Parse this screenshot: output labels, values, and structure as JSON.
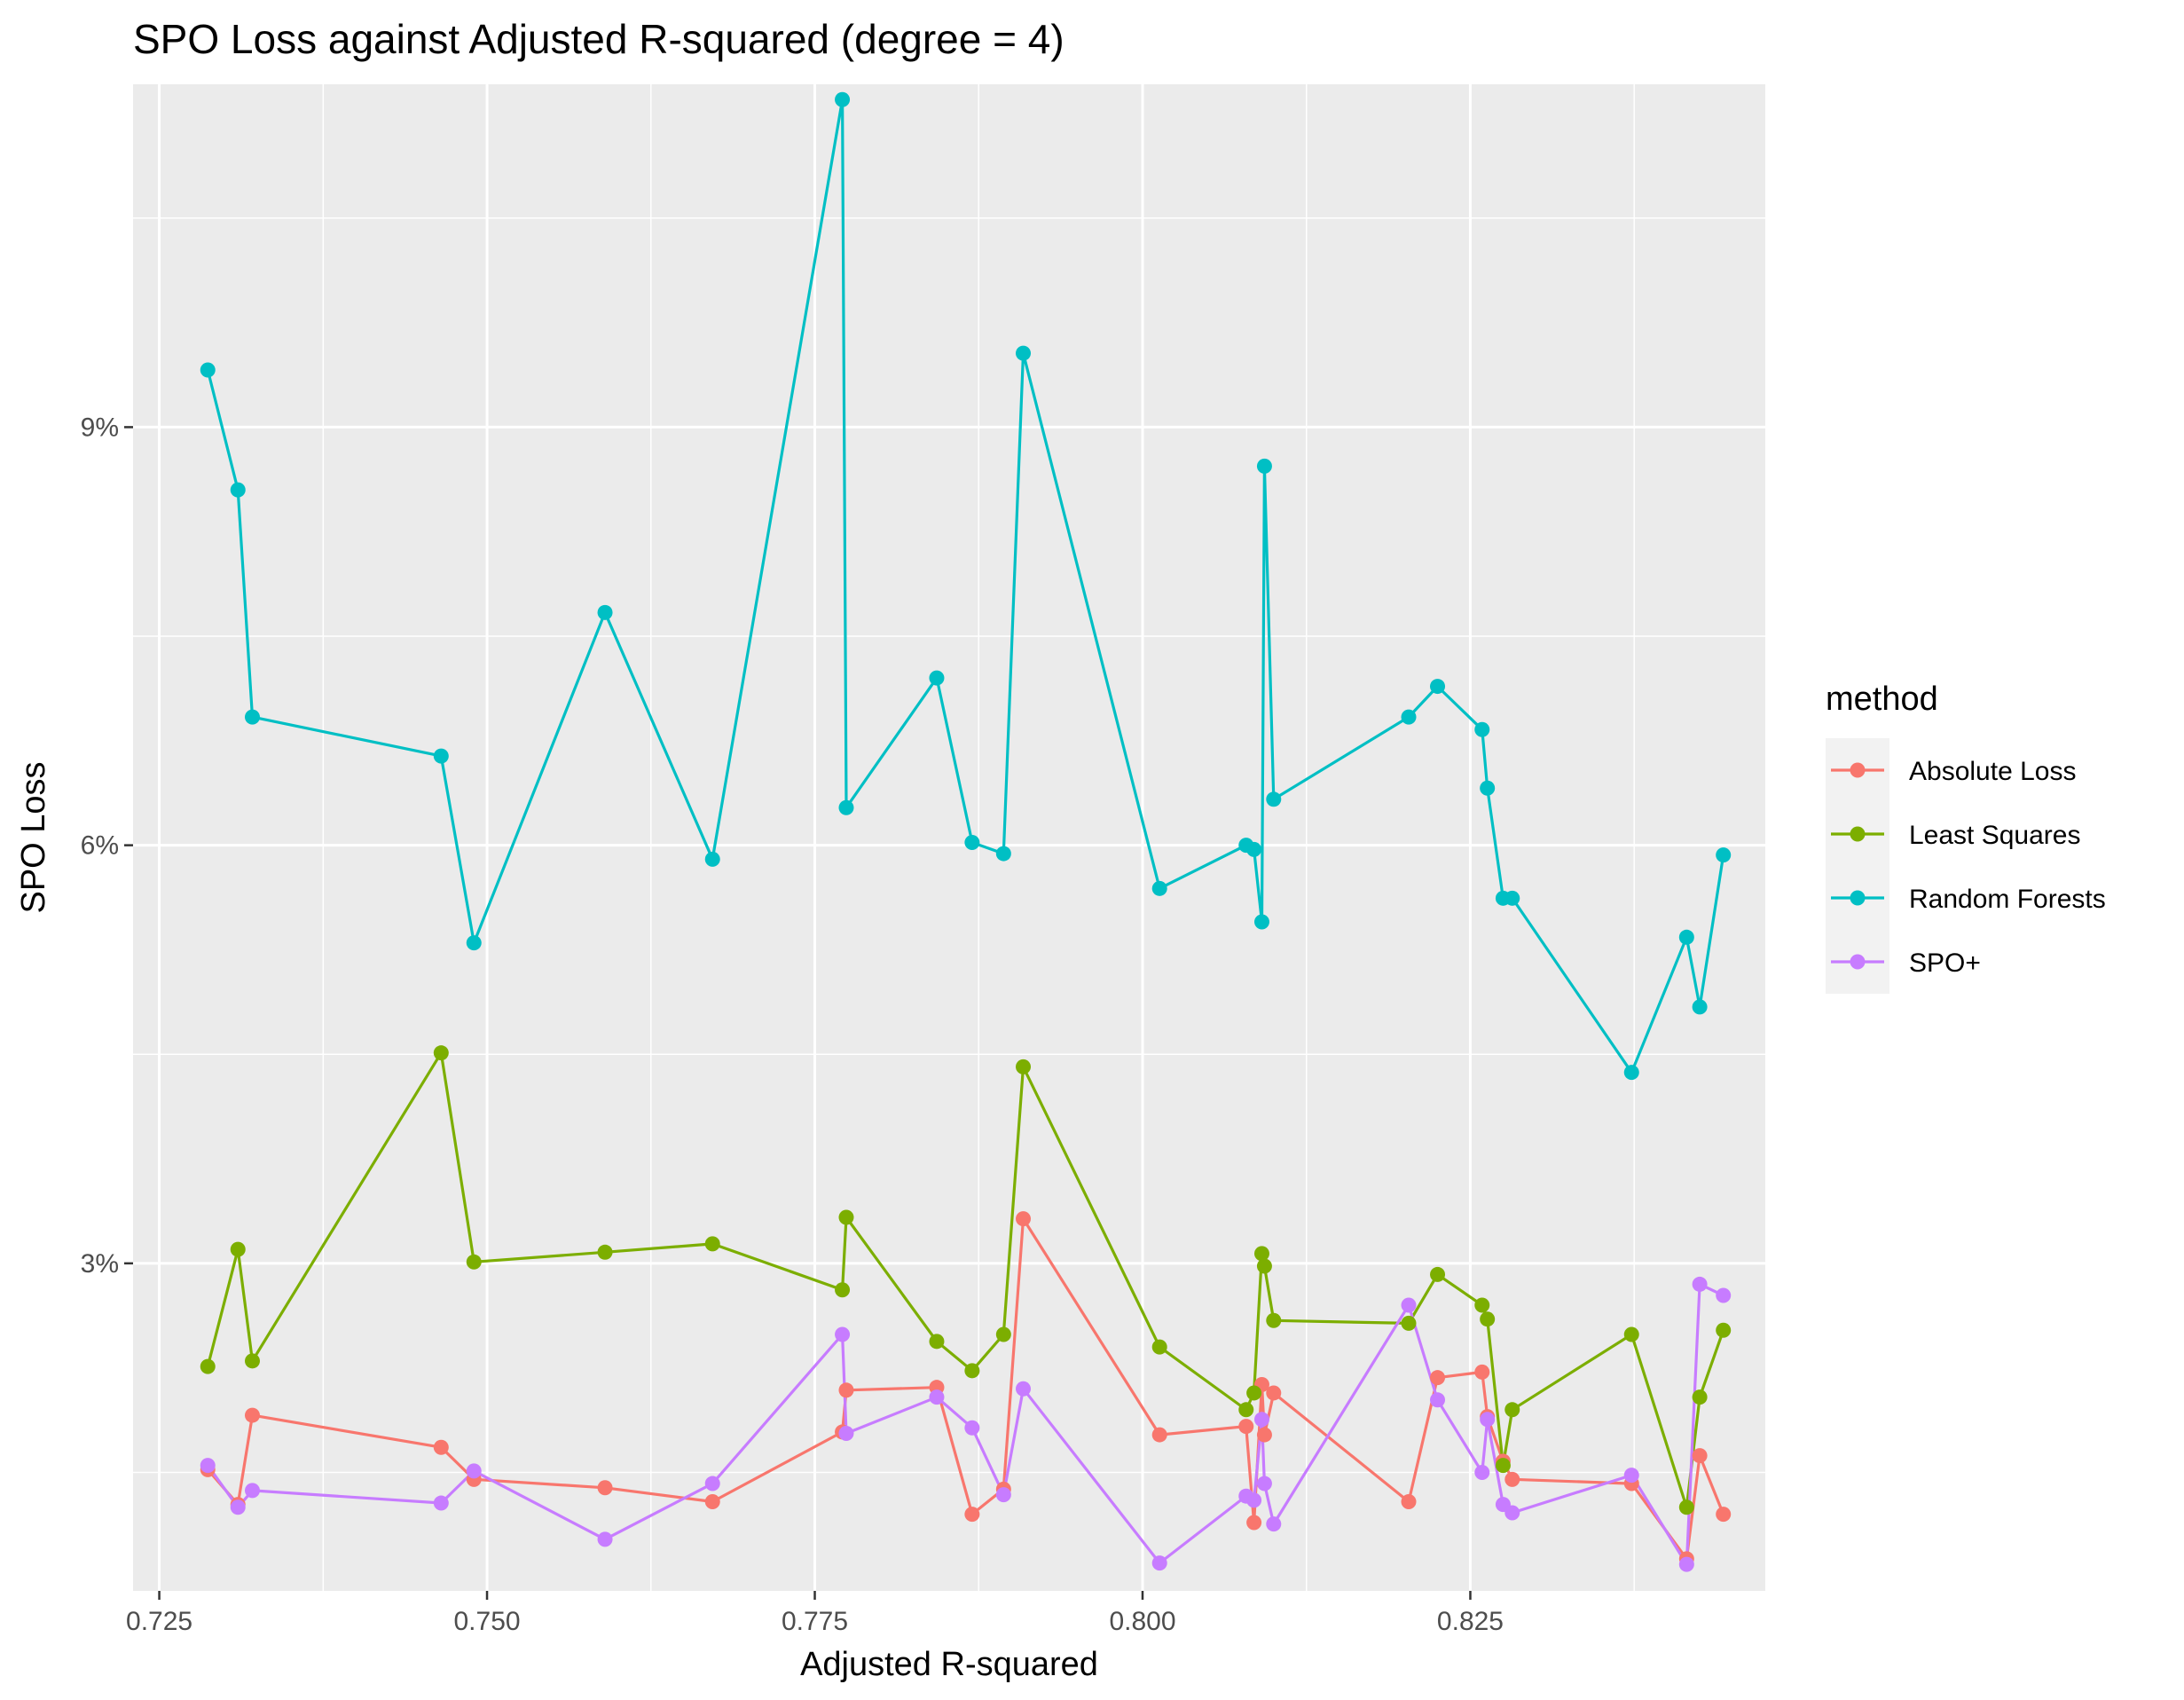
{
  "chart_data": {
    "type": "line",
    "title": "SPO Loss against Adjusted R-squared (degree = 4)",
    "xlabel": "Adjusted R-squared",
    "ylabel": "SPO Loss",
    "xlim": [
      0.723,
      0.8475
    ],
    "ylim": [
      0.0065,
      0.1146
    ],
    "x_ticks": [
      0.725,
      0.75,
      0.775,
      0.8,
      0.825
    ],
    "x_tick_labels": [
      "0.725",
      "0.750",
      "0.775",
      "0.800",
      "0.825"
    ],
    "y_ticks": [
      0.03,
      0.06,
      0.09
    ],
    "y_tick_labels": [
      "3%",
      "6%",
      "9%"
    ],
    "grid": true,
    "legend": {
      "title": "method",
      "position": "right"
    },
    "x": [
      0.7287,
      0.731,
      0.7321,
      0.7465,
      0.749,
      0.759,
      0.7672,
      0.7771,
      0.7774,
      0.7843,
      0.787,
      0.7894,
      0.7909,
      0.8013,
      0.8079,
      0.8085,
      0.8091,
      0.8093,
      0.81,
      0.8203,
      0.8225,
      0.8259,
      0.8263,
      0.8275,
      0.8282,
      0.8373,
      0.8415,
      0.8425,
      0.8443
    ],
    "series": [
      {
        "name": "Absolute Loss",
        "color": "#F8766D",
        "values": [
          0.0152,
          0.0127,
          0.0191,
          0.0168,
          0.0145,
          0.0139,
          0.0129,
          0.0179,
          0.0209,
          0.0211,
          0.012,
          0.0138,
          0.0332,
          0.0177,
          0.0183,
          0.0114,
          0.0213,
          0.0177,
          0.0207,
          0.0129,
          0.0218,
          0.0222,
          0.019,
          0.0158,
          0.0145,
          0.0142,
          0.0088,
          0.0162,
          0.012
        ]
      },
      {
        "name": "Least Squares",
        "color": "#7CAE00",
        "values": [
          0.0226,
          0.031,
          0.023,
          0.0451,
          0.0301,
          0.0308,
          0.0314,
          0.0281,
          0.0333,
          0.0244,
          0.0223,
          0.0249,
          0.0441,
          0.024,
          0.0195,
          0.0207,
          0.0307,
          0.0298,
          0.0259,
          0.0257,
          0.0292,
          0.027,
          0.026,
          0.0155,
          0.0195,
          0.0249,
          0.0125,
          0.0204,
          0.0252
        ]
      },
      {
        "name": "Random Forests",
        "color": "#00BFC4",
        "values": [
          0.0941,
          0.0855,
          0.0692,
          0.0664,
          0.053,
          0.0767,
          0.059,
          0.1135,
          0.0627,
          0.072,
          0.0602,
          0.0594,
          0.0953,
          0.0569,
          0.06,
          0.0597,
          0.0545,
          0.0872,
          0.0633,
          0.0692,
          0.0714,
          0.0683,
          0.0641,
          0.0562,
          0.0562,
          0.0437,
          0.0534,
          0.0484,
          0.0593
        ]
      },
      {
        "name": "SPO+",
        "color": "#C77CFF",
        "values": [
          0.0155,
          0.0125,
          0.0137,
          0.0128,
          0.0151,
          0.0102,
          0.0142,
          0.0249,
          0.0178,
          0.0204,
          0.0182,
          0.0134,
          0.021,
          0.0085,
          0.0133,
          0.013,
          0.0188,
          0.0142,
          0.0113,
          0.027,
          0.0202,
          0.015,
          0.0188,
          0.0127,
          0.0121,
          0.0148,
          0.0084,
          0.0285,
          0.0277
        ]
      }
    ]
  }
}
